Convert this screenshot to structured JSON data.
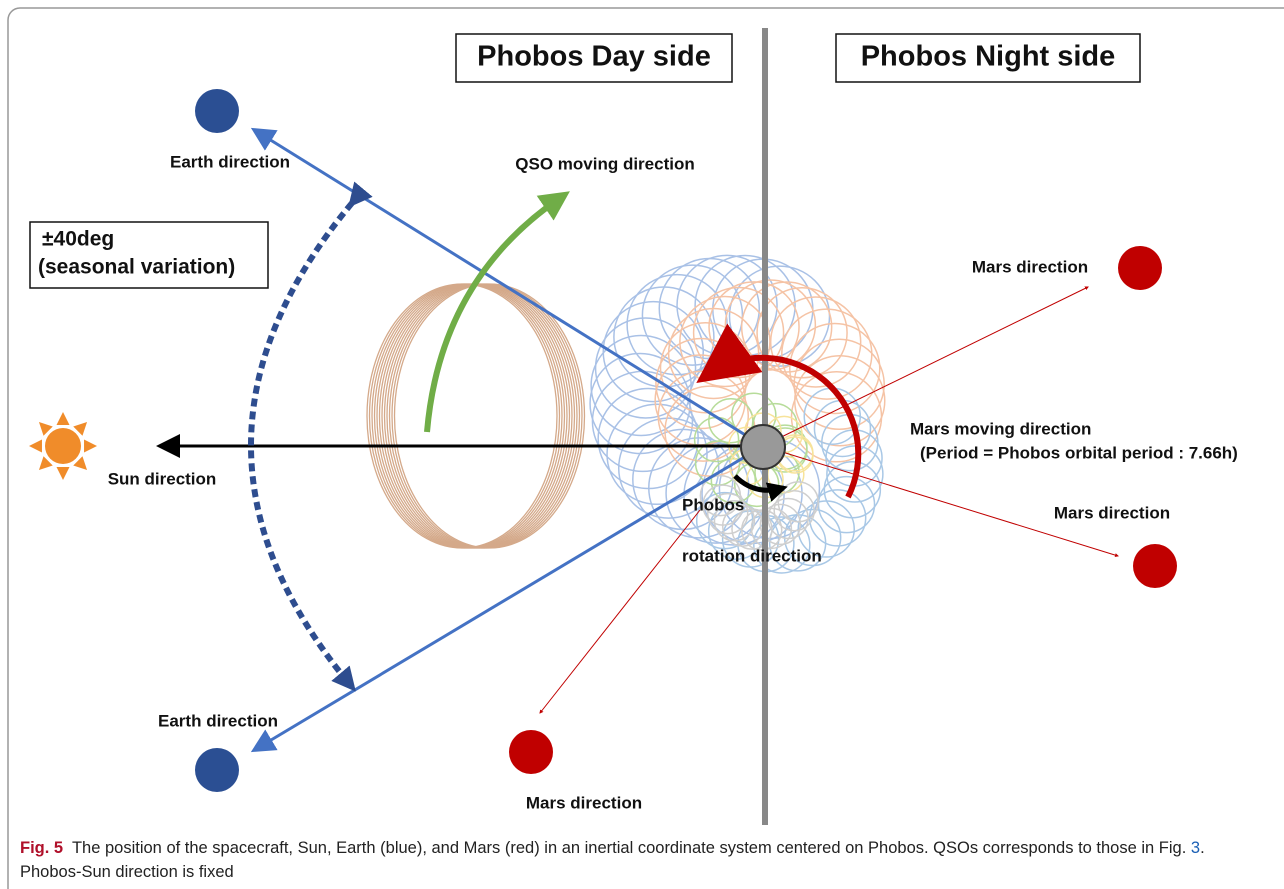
{
  "boxes": {
    "day": "Phobos Day side",
    "night": "Phobos Night side"
  },
  "season": {
    "line1": "±40deg",
    "line2": "(seasonal variation)"
  },
  "labels": {
    "earth_top": "Earth direction",
    "earth_bottom": "Earth direction",
    "qso": "QSO moving direction",
    "sun": "Sun direction",
    "mars_right_top": "Mars direction",
    "mars_right_bottom": "Mars direction",
    "mars_bottom": "Mars direction",
    "mars_moving": "Mars moving direction",
    "period": "(Period = Phobos orbital period : 7.66h)",
    "rotation1": "Phobos",
    "rotation2": "rotation direction"
  },
  "caption": {
    "label": "Fig. 5",
    "text1": "The position of the spacecraft, Sun, Earth (blue), and Mars (red) in an inertial coordinate system centered on Phobos. QSOs corresponds to those in Fig. ",
    "link": "3",
    "text2": ". Phobos-Sun direction is fixed"
  }
}
